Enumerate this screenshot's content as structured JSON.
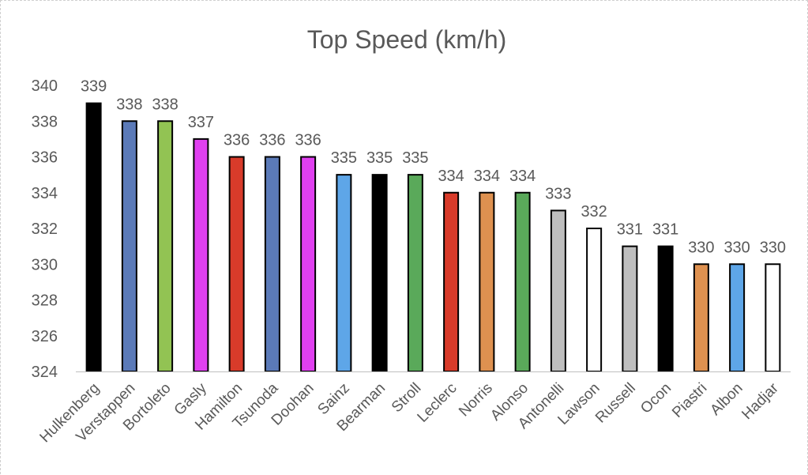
{
  "chart_data": {
    "type": "bar",
    "title": "Top Speed (km/h)",
    "xlabel": "",
    "ylabel": "",
    "ylim": [
      324,
      340
    ],
    "yticks": [
      324,
      326,
      328,
      330,
      332,
      334,
      336,
      338,
      340
    ],
    "grid": false,
    "legend": "none",
    "categories": [
      "Hulkenberg",
      "Verstappen",
      "Bortoleto",
      "Gasly",
      "Hamilton",
      "Tsunoda",
      "Doohan",
      "Sainz",
      "Bearman",
      "Stroll",
      "Leclerc",
      "Norris",
      "Alonso",
      "Antonelli",
      "Lawson",
      "Russell",
      "Ocon",
      "Piastri",
      "Albon",
      "Hadjar"
    ],
    "values": [
      339,
      338,
      338,
      337,
      336,
      336,
      336,
      335,
      335,
      335,
      334,
      334,
      334,
      333,
      332,
      331,
      331,
      330,
      330,
      330
    ],
    "colors": [
      "#000000",
      "#5b7ab8",
      "#92c353",
      "#e040f0",
      "#d83b2a",
      "#5b7ab8",
      "#e040f0",
      "#5ea6e8",
      "#000000",
      "#5aa95a",
      "#d83b2a",
      "#de9150",
      "#5aa95a",
      "#bebebe",
      "#ffffff",
      "#bebebe",
      "#000000",
      "#de9150",
      "#5ea6e8",
      "#ffffff"
    ],
    "outlined": [
      false,
      false,
      false,
      false,
      false,
      false,
      false,
      false,
      false,
      false,
      false,
      false,
      false,
      false,
      false,
      false,
      false,
      false,
      true,
      false
    ]
  }
}
